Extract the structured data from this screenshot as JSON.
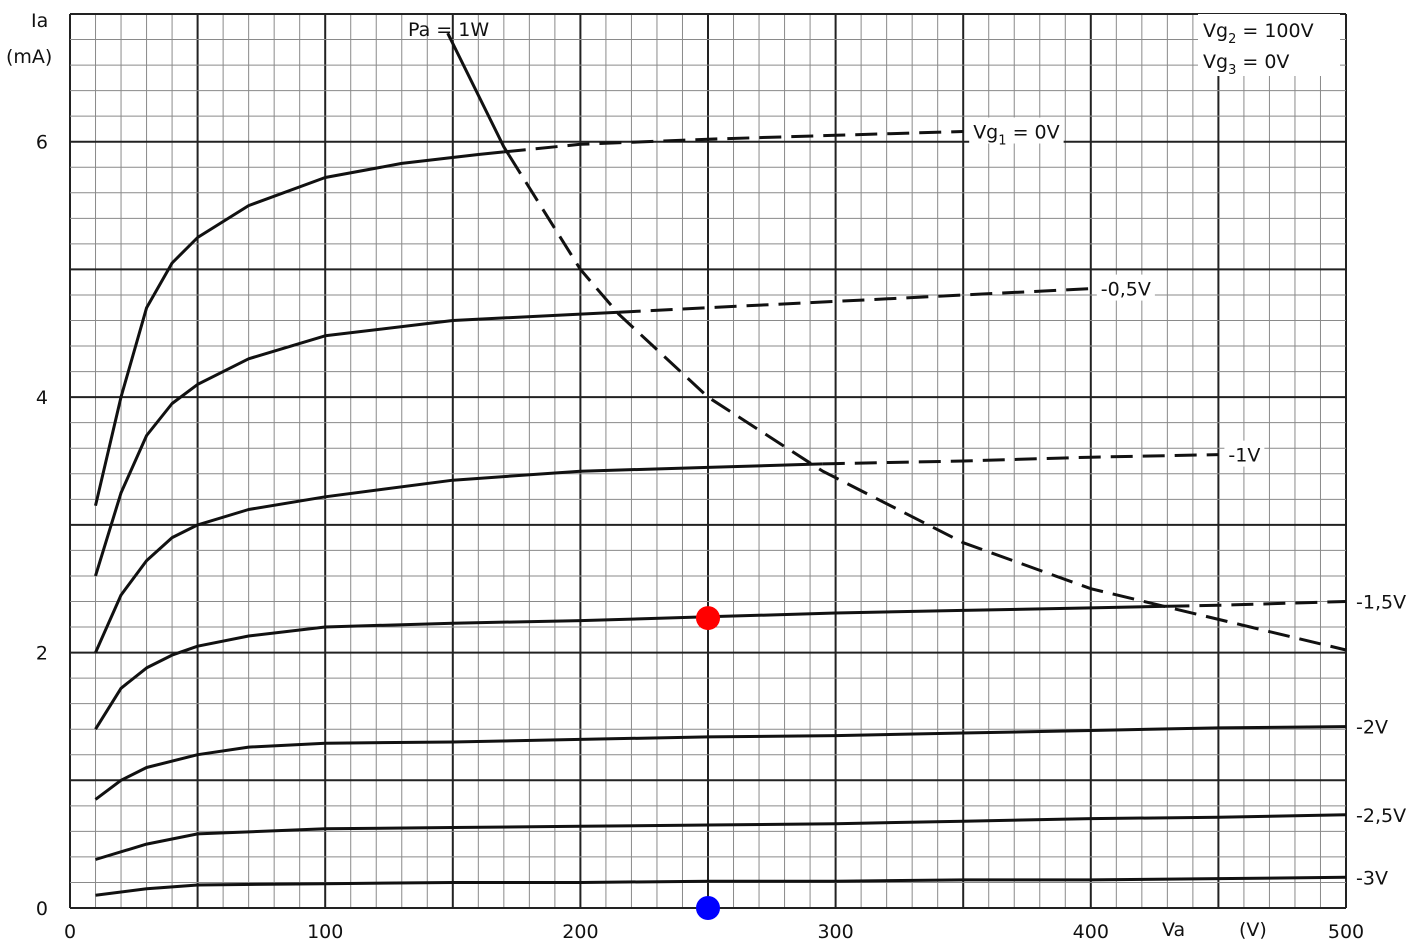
{
  "chart_data": {
    "type": "line",
    "title": "",
    "xlabel": "Va",
    "xunit": "(V)",
    "ylabel": "Ia",
    "yunit": "(mA)",
    "xlim": [
      0,
      500
    ],
    "ylim": [
      0,
      7
    ],
    "x_ticks": [
      "0",
      "100",
      "200",
      "300",
      "400",
      "500"
    ],
    "y_ticks": [
      "0",
      "2",
      "4",
      "6"
    ],
    "x_tick_values": [
      0,
      100,
      200,
      300,
      400,
      500
    ],
    "y_tick_values": [
      0,
      2,
      4,
      6
    ],
    "grid": true,
    "conditions": [
      {
        "label": "Vg",
        "sub": "2",
        "value": "= 100V"
      },
      {
        "label": "Vg",
        "sub": "3",
        "value": "=     0V"
      }
    ],
    "series": [
      {
        "name": "Vg1 = 0V",
        "label_main": "Vg",
        "label_sub": "1",
        "label_value": " = 0V",
        "x": [
          10,
          20,
          30,
          40,
          50,
          70,
          100,
          130,
          160,
          200,
          250,
          300,
          350
        ],
        "y": [
          3.15,
          4.0,
          4.7,
          5.05,
          5.25,
          5.5,
          5.72,
          5.83,
          5.9,
          5.98,
          6.02,
          6.05,
          6.08
        ],
        "dash_from_x": 170,
        "dash_until_x": 350
      },
      {
        "name": "-0,5V",
        "label_main": "-0,5V",
        "x": [
          10,
          20,
          30,
          40,
          50,
          70,
          100,
          150,
          200,
          250,
          300,
          350,
          400
        ],
        "y": [
          2.6,
          3.25,
          3.7,
          3.95,
          4.1,
          4.3,
          4.48,
          4.6,
          4.65,
          4.7,
          4.75,
          4.8,
          4.85
        ],
        "dash_from_x": 215
      },
      {
        "name": "-1V",
        "label_main": "-1V",
        "x": [
          10,
          20,
          30,
          40,
          50,
          70,
          100,
          150,
          200,
          250,
          300,
          350,
          400,
          450
        ],
        "y": [
          2.0,
          2.45,
          2.72,
          2.9,
          3.0,
          3.12,
          3.22,
          3.35,
          3.42,
          3.45,
          3.48,
          3.5,
          3.53,
          3.55
        ],
        "dash_from_x": 295
      },
      {
        "name": "-1,5V",
        "label_main": "-1,5V",
        "x": [
          10,
          20,
          30,
          40,
          50,
          70,
          100,
          150,
          200,
          250,
          300,
          350,
          400,
          450,
          500
        ],
        "y": [
          1.4,
          1.72,
          1.88,
          1.98,
          2.05,
          2.13,
          2.2,
          2.23,
          2.25,
          2.28,
          2.31,
          2.33,
          2.35,
          2.37,
          2.4
        ],
        "dash_from_x": 430
      },
      {
        "name": "-2V",
        "label_main": "-2V",
        "x": [
          10,
          20,
          30,
          50,
          70,
          100,
          150,
          200,
          250,
          300,
          350,
          400,
          450,
          500
        ],
        "y": [
          0.85,
          1.0,
          1.1,
          1.2,
          1.26,
          1.29,
          1.3,
          1.32,
          1.34,
          1.35,
          1.37,
          1.39,
          1.41,
          1.42
        ]
      },
      {
        "name": "-2,5V",
        "label_main": "-2,5V",
        "x": [
          10,
          30,
          50,
          100,
          150,
          200,
          250,
          300,
          350,
          400,
          450,
          500
        ],
        "y": [
          0.38,
          0.5,
          0.58,
          0.62,
          0.63,
          0.64,
          0.65,
          0.66,
          0.68,
          0.7,
          0.71,
          0.73
        ]
      },
      {
        "name": "-3V",
        "label_main": "-3V",
        "x": [
          10,
          30,
          50,
          100,
          150,
          200,
          250,
          300,
          350,
          400,
          450,
          500
        ],
        "y": [
          0.1,
          0.15,
          0.18,
          0.19,
          0.2,
          0.2,
          0.21,
          0.21,
          0.22,
          0.22,
          0.23,
          0.24
        ]
      }
    ],
    "power_curve": {
      "label": "Pa  =  1W",
      "x": [
        148,
        170,
        200,
        215,
        250,
        295,
        350,
        400,
        500
      ],
      "y": [
        6.85,
        5.96,
        5.0,
        4.65,
        4.0,
        3.42,
        2.86,
        2.5,
        2.02
      ],
      "dash_from_x": 172
    },
    "markers": [
      {
        "name": "red-marker",
        "x": 250,
        "y": 2.27,
        "color": "#ff0000"
      },
      {
        "name": "blue-marker",
        "x": 250,
        "y": 0.0,
        "color": "#0000ff"
      }
    ],
    "colors": {
      "line": "#111111",
      "grid_major": "#222222",
      "grid_minor": "#8a8a8a",
      "background": "#ffffff"
    }
  }
}
